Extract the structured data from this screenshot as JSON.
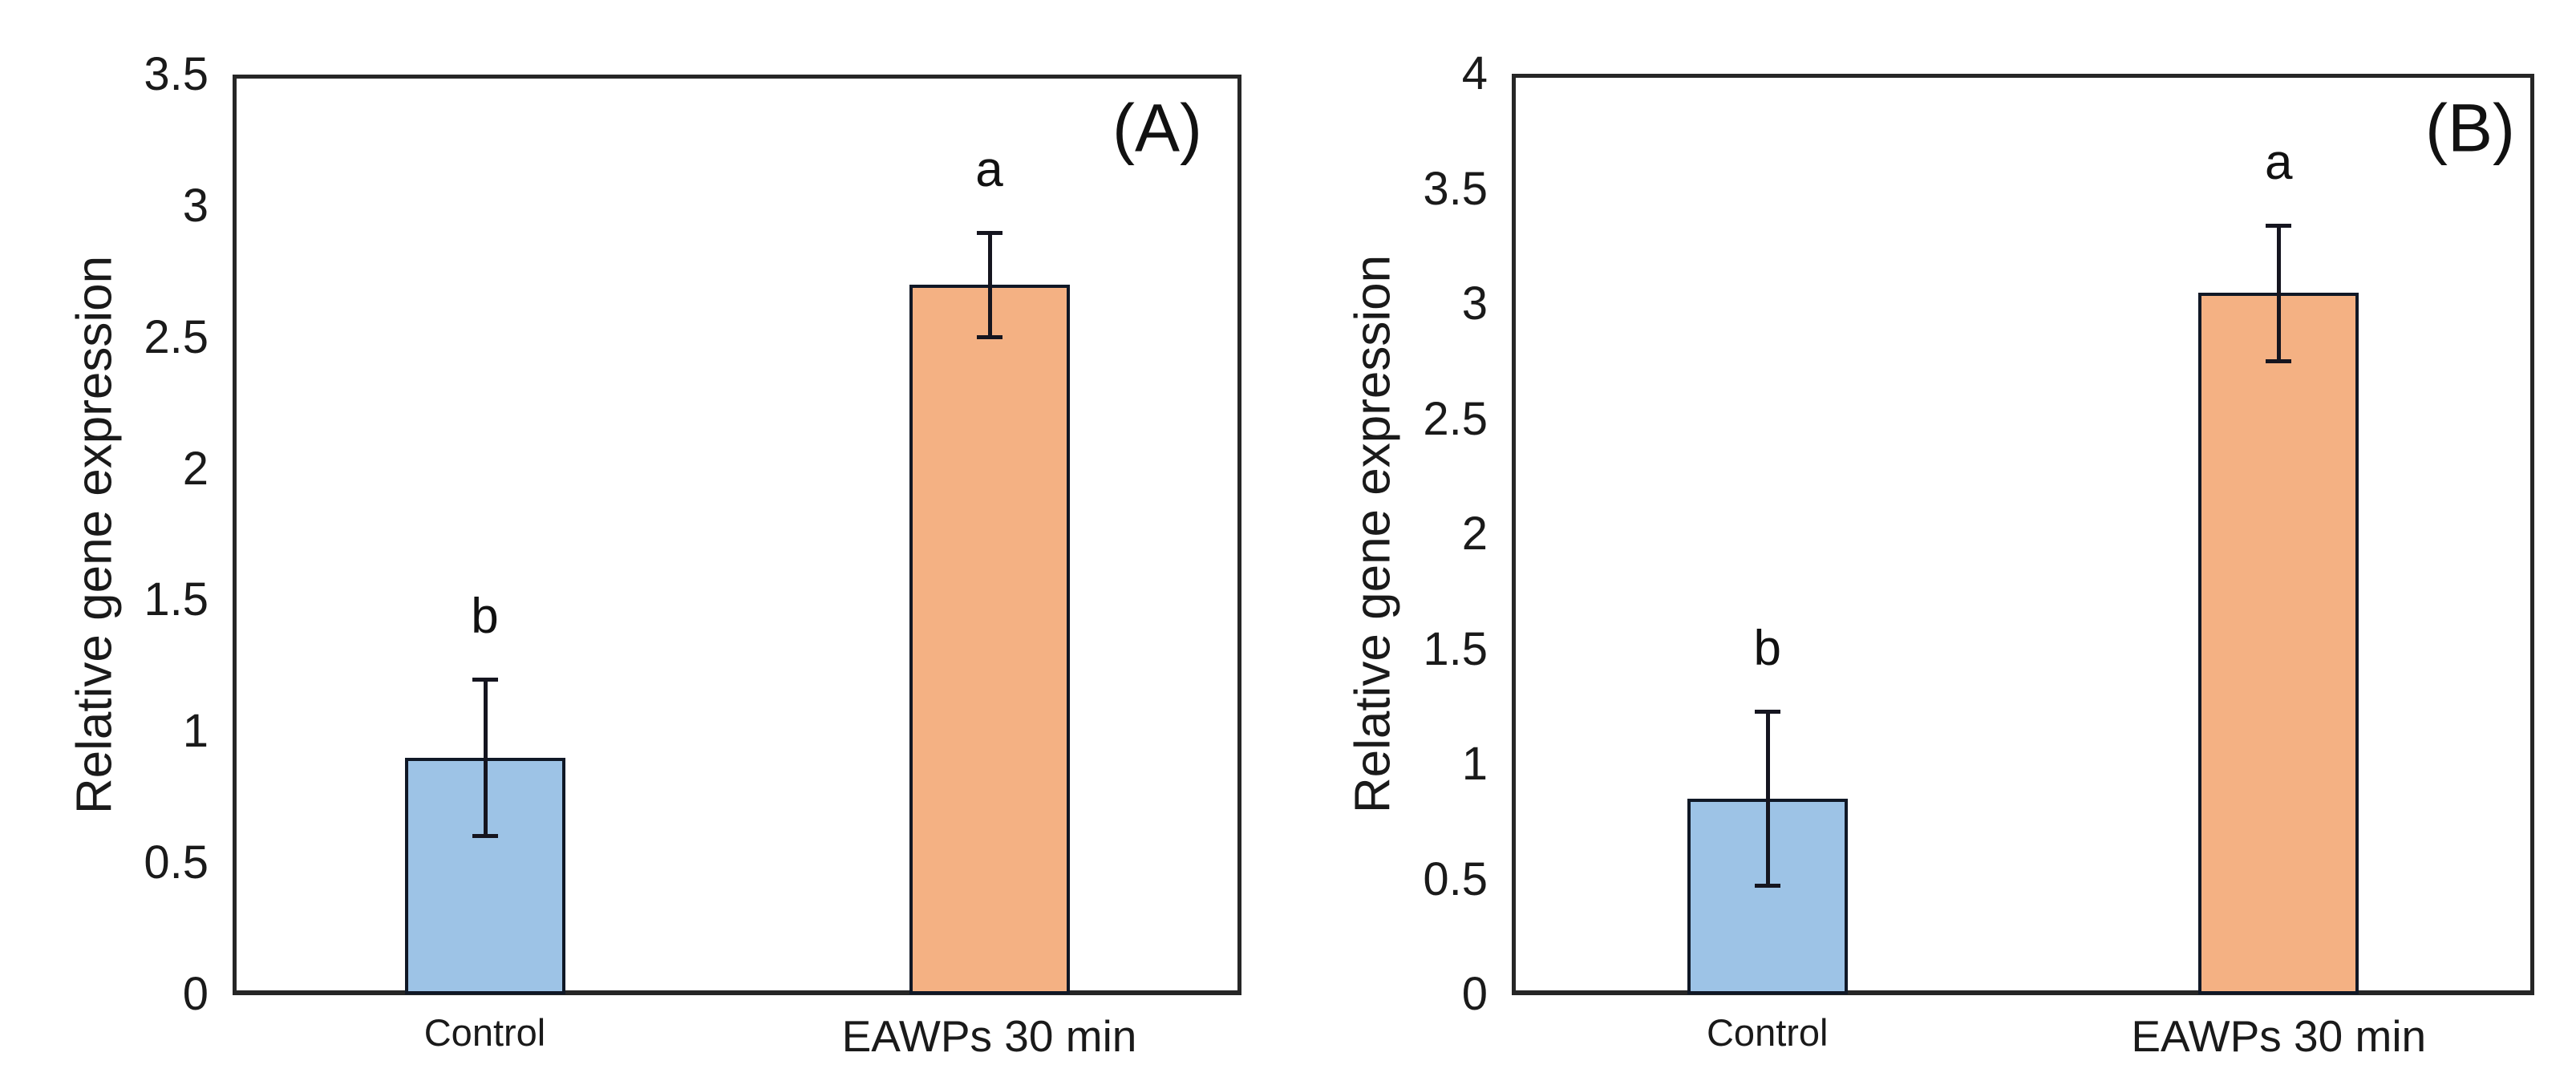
{
  "figure": {
    "background": "#ffffff",
    "y_axis_title": "Relative gene expression"
  },
  "colors": {
    "control_fill": "#9DC3E6",
    "treatment_fill": "#F4B183",
    "bar_outline": "#101826",
    "error_bar": "#15151f",
    "frame": "#262626"
  },
  "chart_data": [
    {
      "type": "bar",
      "panel_label": "(A)",
      "title": "",
      "xlabel": "",
      "ylabel": "Relative gene expression",
      "categories": [
        "Control",
        "EAWPs 30 min"
      ],
      "values": [
        0.9,
        2.7
      ],
      "error_up": [
        0.3,
        0.2
      ],
      "error_down": [
        0.3,
        0.2
      ],
      "sig_letters": [
        "b",
        "a"
      ],
      "ylim": [
        0,
        3.5
      ],
      "yticks": [
        0,
        0.5,
        1,
        1.5,
        2,
        2.5,
        3,
        3.5
      ],
      "grid": "off",
      "legend": "none"
    },
    {
      "type": "bar",
      "panel_label": "(B)",
      "title": "",
      "xlabel": "",
      "ylabel": "Relative gene expression",
      "categories": [
        "Control",
        "EAWPs 30 min"
      ],
      "values": [
        0.85,
        3.05
      ],
      "error_up": [
        0.38,
        0.29
      ],
      "error_down": [
        0.38,
        0.3
      ],
      "sig_letters": [
        "b",
        "a"
      ],
      "ylim": [
        0,
        4
      ],
      "yticks": [
        0,
        0.5,
        1,
        1.5,
        2,
        2.5,
        3,
        3.5,
        4
      ],
      "grid": "off",
      "legend": "none"
    }
  ]
}
